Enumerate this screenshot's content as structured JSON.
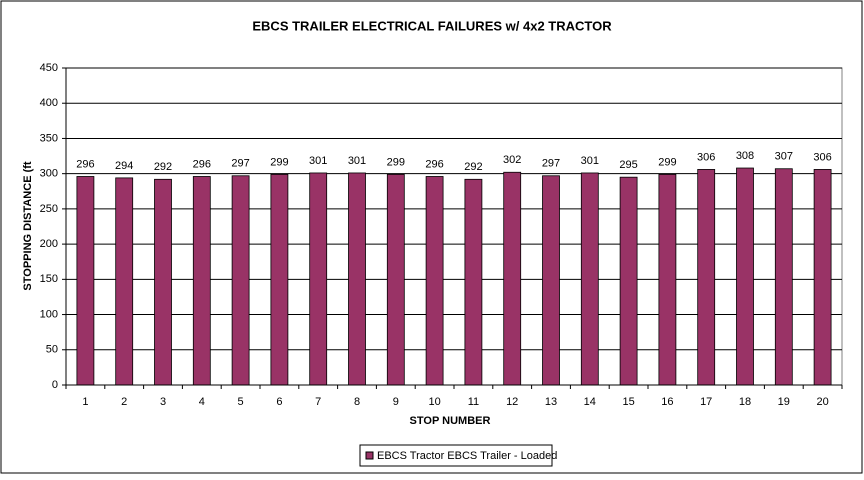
{
  "chart_data": {
    "type": "bar",
    "title": "EBCS TRAILER ELECTRICAL FAILURES w/ 4x2 TRACTOR",
    "x_label": "STOP NUMBER",
    "y_label": "STOPPING DISTANCE (ft",
    "categories": [
      "1",
      "2",
      "3",
      "4",
      "5",
      "6",
      "7",
      "8",
      "9",
      "10",
      "11",
      "12",
      "13",
      "14",
      "15",
      "16",
      "17",
      "18",
      "19",
      "20"
    ],
    "series": [
      {
        "name": "EBCS Tractor EBCS Trailer - Loaded",
        "color": "#993366",
        "values": [
          296,
          294,
          292,
          296,
          297,
          299,
          301,
          301,
          299,
          296,
          292,
          302,
          297,
          301,
          295,
          299,
          306,
          308,
          307,
          306
        ]
      }
    ],
    "ylim": [
      0,
      450
    ],
    "yticks": [
      0,
      50,
      100,
      150,
      200,
      250,
      300,
      350,
      400,
      450
    ],
    "grid": true,
    "legend": "bottom"
  }
}
